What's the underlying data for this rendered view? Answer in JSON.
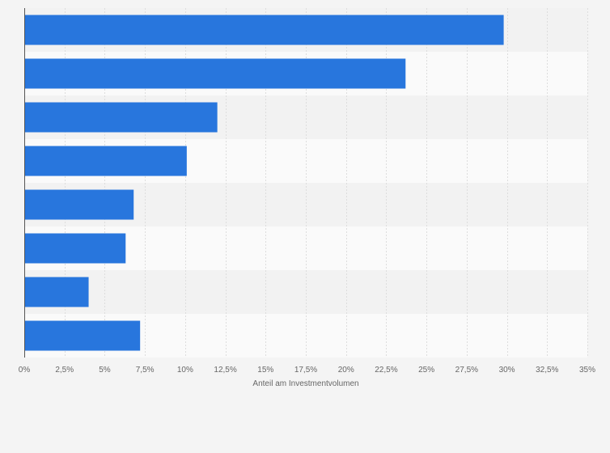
{
  "chart_data": {
    "type": "bar",
    "orientation": "horizontal",
    "categories": [
      "",
      "",
      "",
      "",
      "",
      "",
      "",
      ""
    ],
    "values": [
      29.8,
      23.7,
      12.0,
      10.1,
      6.8,
      6.3,
      4.0,
      7.2
    ],
    "xlabel": "Anteil am Investmentvolumen",
    "ylabel": "",
    "xlim": [
      0,
      35
    ],
    "xticks": [
      0,
      2.5,
      5,
      7.5,
      10,
      12.5,
      15,
      17.5,
      20,
      22.5,
      25,
      27.5,
      30,
      32.5,
      35
    ],
    "xtick_labels": [
      "0%",
      "2,5%",
      "5%",
      "7,5%",
      "10%",
      "12,5%",
      "15%",
      "17,5%",
      "20%",
      "22,5%",
      "25%",
      "27,5%",
      "30%",
      "32,5%",
      "35%"
    ],
    "grid": true,
    "bar_color": "#2876dd",
    "band_colors": [
      "#f2f2f2",
      "#fafafa"
    ],
    "gridline_color": "#dddddd",
    "axis_color": "#555555"
  }
}
